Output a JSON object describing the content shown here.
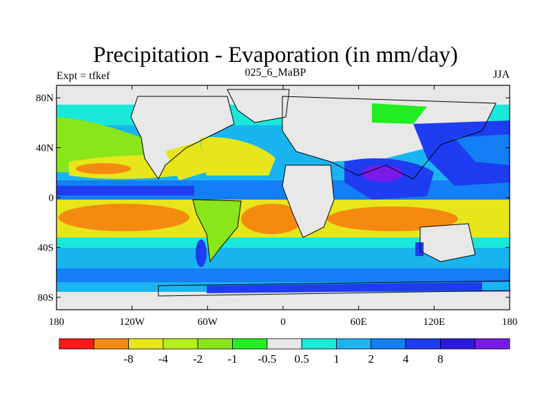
{
  "title": "Precipitation - Evaporation (in mm/day)",
  "subtitle_left": "Expt = tfkef",
  "subtitle_center": "025_6_MaBP",
  "subtitle_right": "JJA",
  "map": {
    "lon_range": [
      -180,
      180
    ],
    "lat_range": [
      -90,
      90
    ],
    "x_ticks": [
      {
        "value": -180,
        "label": "180"
      },
      {
        "value": -120,
        "label": "120W"
      },
      {
        "value": -60,
        "label": "60W"
      },
      {
        "value": 0,
        "label": "0"
      },
      {
        "value": 60,
        "label": "60E"
      },
      {
        "value": 120,
        "label": "120E"
      },
      {
        "value": 180,
        "label": "180"
      }
    ],
    "y_ticks": [
      {
        "value": 80,
        "label": "80N"
      },
      {
        "value": 40,
        "label": "40N"
      },
      {
        "value": 0,
        "label": "0"
      },
      {
        "value": -40,
        "label": "40S"
      },
      {
        "value": -80,
        "label": "80S"
      }
    ]
  },
  "colorbar": {
    "colors": [
      "#ff1a1a",
      "#f58a10",
      "#e6e61a",
      "#b5ee1a",
      "#8ae61a",
      "#22ee22",
      "#e8e8e8",
      "#1ae8d8",
      "#1ab4f0",
      "#147ef5",
      "#1e3cf0",
      "#2d1adc",
      "#7a1ae6"
    ],
    "labels": [
      "-8",
      "-4",
      "-2",
      "-1",
      "-0.5",
      "0.5",
      "1",
      "2",
      "4",
      "8"
    ]
  }
}
